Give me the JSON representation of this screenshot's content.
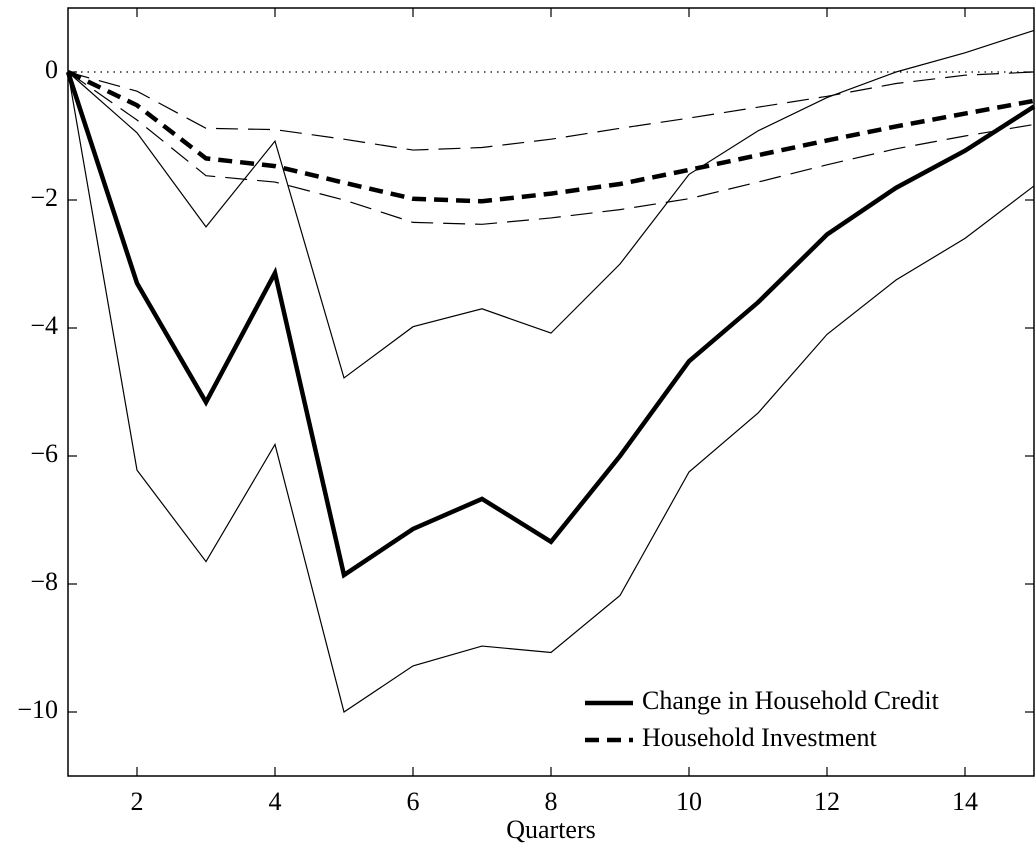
{
  "chart_data": {
    "type": "line",
    "x_label": "Quarters",
    "x": [
      1,
      2,
      3,
      4,
      5,
      6,
      7,
      8,
      9,
      10,
      11,
      12,
      13,
      14,
      15
    ],
    "series": [
      {
        "name": "Change in Household Credit",
        "color": "#000000",
        "style": "solid",
        "width": 4.5,
        "values": [
          0,
          -3.3,
          -5.16,
          -3.14,
          -7.86,
          -7.14,
          -6.67,
          -7.34,
          -6.0,
          -4.52,
          -3.6,
          -2.54,
          -1.81,
          -1.23,
          -0.54
        ]
      },
      {
        "color": "#000000",
        "style": "solid",
        "width": 1.2,
        "values": [
          0,
          -0.95,
          -2.42,
          -1.08,
          -4.78,
          -3.98,
          -3.7,
          -4.08,
          -3.0,
          -1.6,
          -0.92,
          -0.4,
          0.0,
          0.3,
          0.65
        ]
      },
      {
        "color": "#000000",
        "style": "solid",
        "width": 1.2,
        "values": [
          0,
          -6.22,
          -7.65,
          -5.82,
          -10.0,
          -9.28,
          -8.97,
          -9.07,
          -8.18,
          -6.25,
          -5.33,
          -4.1,
          -3.25,
          -2.6,
          -1.78
        ]
      },
      {
        "name": "Household Investment",
        "color": "#000000",
        "style": "dashed",
        "width": 4.5,
        "values": [
          0,
          -0.52,
          -1.35,
          -1.47,
          -1.73,
          -1.98,
          -2.02,
          -1.9,
          -1.75,
          -1.53,
          -1.3,
          -1.07,
          -0.85,
          -0.65,
          -0.45
        ]
      },
      {
        "color": "#000000",
        "style": "dashed",
        "width": 1.2,
        "values": [
          0,
          -0.3,
          -0.88,
          -0.9,
          -1.05,
          -1.22,
          -1.18,
          -1.05,
          -0.88,
          -0.72,
          -0.55,
          -0.38,
          -0.18,
          -0.05,
          0.0
        ]
      },
      {
        "color": "#000000",
        "style": "dashed",
        "width": 1.2,
        "values": [
          0,
          -0.75,
          -1.62,
          -1.72,
          -2.0,
          -2.35,
          -2.38,
          -2.28,
          -2.15,
          -1.98,
          -1.72,
          -1.45,
          -1.2,
          -1.0,
          -0.82
        ]
      }
    ],
    "xlim": [
      1,
      15
    ],
    "xticks": [
      2,
      4,
      6,
      8,
      10,
      12,
      14
    ],
    "ylim": [
      -11,
      1
    ],
    "yticks": [
      {
        "value": -10,
        "label": "−10"
      },
      {
        "value": -8,
        "label": "−8"
      },
      {
        "value": -6,
        "label": "−6"
      },
      {
        "value": -4,
        "label": "−4"
      },
      {
        "value": -2,
        "label": "−2"
      },
      0
    ],
    "zero_line": true,
    "grid": false,
    "legend": "lower right"
  }
}
